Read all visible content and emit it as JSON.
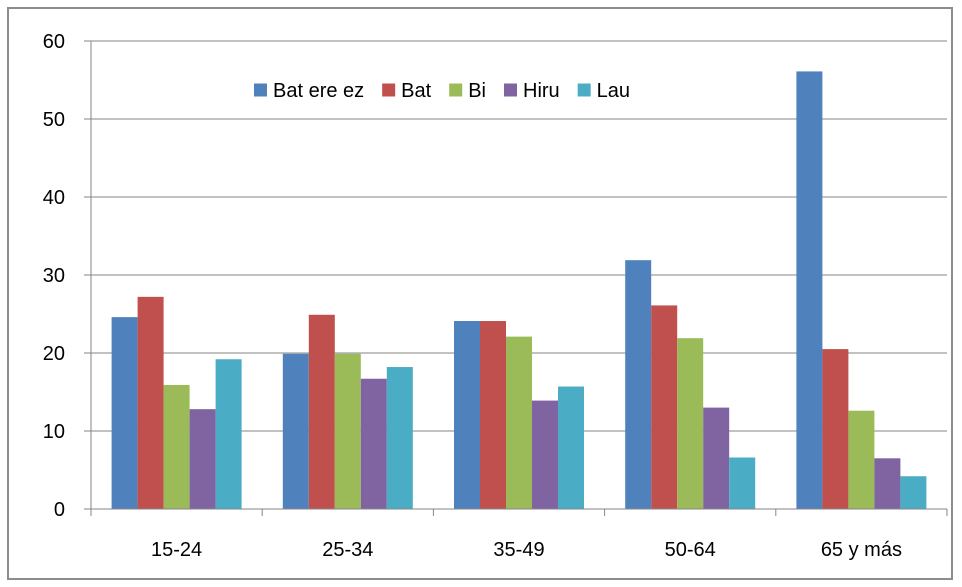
{
  "chart_data": {
    "type": "bar",
    "categories": [
      "15-24",
      "25-34",
      "35-49",
      "50-64",
      "65 y más"
    ],
    "series": [
      {
        "name": "Bat ere ez",
        "color": "#4f81bd",
        "values": [
          24.6,
          19.9,
          24.1,
          31.9,
          56.1
        ]
      },
      {
        "name": "Bat",
        "color": "#c0504d",
        "values": [
          27.2,
          24.9,
          24.1,
          26.1,
          20.5
        ]
      },
      {
        "name": "Bi",
        "color": "#9bbb59",
        "values": [
          15.9,
          19.9,
          22.1,
          21.9,
          12.6
        ]
      },
      {
        "name": "Hiru",
        "color": "#8064a2",
        "values": [
          12.8,
          16.7,
          13.9,
          13.0,
          6.5
        ]
      },
      {
        "name": "Lau",
        "color": "#4bacc6",
        "values": [
          19.2,
          18.2,
          15.7,
          6.6,
          4.2
        ]
      }
    ],
    "yticks": [
      "0",
      "10",
      "20",
      "30",
      "40",
      "50",
      "60"
    ],
    "ylim": [
      0,
      60
    ],
    "grid": true,
    "legend_position": "top-center",
    "title": "",
    "xlabel": "",
    "ylabel": ""
  }
}
